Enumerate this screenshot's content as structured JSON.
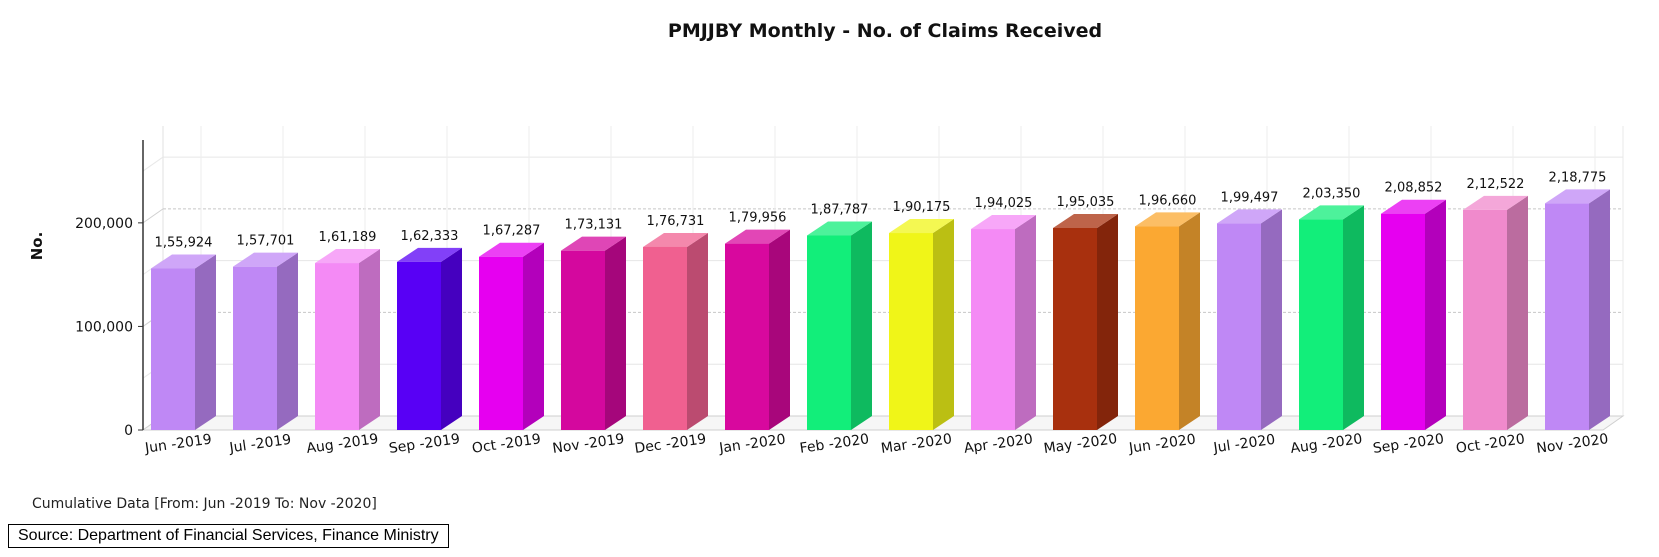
{
  "chart_data": {
    "type": "bar",
    "title": "PMJJBY Monthly - No. of Claims Received",
    "ylabel": "No.",
    "xlabel": "",
    "ylim": [
      0,
      280000
    ],
    "yticks": [
      0,
      100000,
      200000
    ],
    "ytick_labels": [
      "0",
      "100,000",
      "200,000"
    ],
    "grid": true,
    "categories": [
      "Jun -2019",
      "Jul -2019",
      "Aug -2019",
      "Sep -2019",
      "Oct -2019",
      "Nov -2019",
      "Dec -2019",
      "Jan -2020",
      "Feb -2020",
      "Mar -2020",
      "Apr -2020",
      "May -2020",
      "Jun -2020",
      "Jul -2020",
      "Aug -2020",
      "Sep -2020",
      "Oct -2020",
      "Nov -2020"
    ],
    "values": [
      155924,
      157701,
      161189,
      162333,
      167287,
      173131,
      176731,
      179956,
      187787,
      190175,
      194025,
      195035,
      196660,
      199497,
      203350,
      208852,
      212522,
      218775
    ],
    "value_labels": [
      "1,55,924",
      "1,57,701",
      "1,61,189",
      "1,62,333",
      "1,67,287",
      "1,73,131",
      "1,76,731",
      "1,79,956",
      "1,87,787",
      "1,90,175",
      "1,94,025",
      "1,95,035",
      "1,96,660",
      "1,99,497",
      "2,03,350",
      "2,08,852",
      "2,12,522",
      "2,18,775"
    ],
    "colors": [
      "#bf88f5",
      "#bf88f5",
      "#f48af5",
      "#5800f5",
      "#e600f0",
      "#d4089e",
      "#f06090",
      "#d8089e",
      "#12ee7a",
      "#f0f518",
      "#f48af5",
      "#a8300e",
      "#fba832",
      "#bf88f5",
      "#12ee7a",
      "#e600f0",
      "#f08acc",
      "#bf88f5"
    ]
  },
  "footer": {
    "cumulative": "Cumulative Data [From: Jun -2019 To: Nov -2020]",
    "source": "Source: Department of Financial Services, Finance Ministry"
  }
}
